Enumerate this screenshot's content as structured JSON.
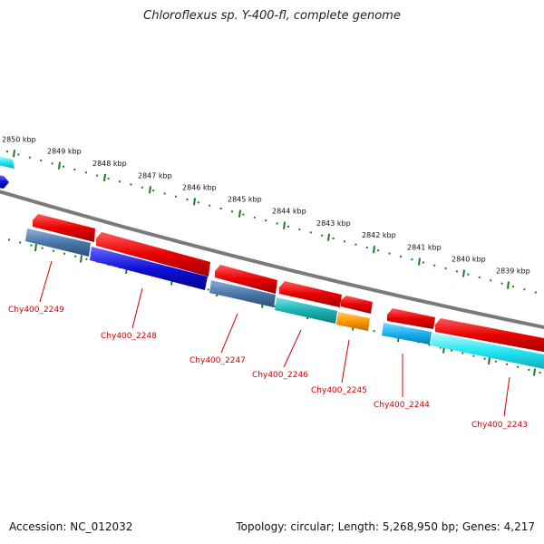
{
  "title": "Chloroflexus sp. Y-400-fl, complete genome",
  "footer": {
    "accession": "Accession: NC_012032",
    "summary": "Topology: circular; Length: 5,268,950 bp; Genes: 4,217"
  },
  "colors": {
    "backbone": "#7a7a7a",
    "tick": "#1f7a1f",
    "label": "#d40000",
    "forward_gene": "#e60000",
    "steelblue": "#4a76a8",
    "blue": "#1010d8",
    "teal": "#19b3b3",
    "orange": "#ff9900",
    "sky": "#1ab2f0",
    "cyan": "#22e6f2"
  },
  "ruler": [
    {
      "label": "2850 kbp"
    },
    {
      "label": "2849 kbp"
    },
    {
      "label": "2848 kbp"
    },
    {
      "label": "2847 kbp"
    },
    {
      "label": "2846 kbp"
    },
    {
      "label": "2845 kbp"
    },
    {
      "label": "2844 kbp"
    },
    {
      "label": "2843 kbp"
    },
    {
      "label": "2842 kbp"
    },
    {
      "label": "2841 kbp"
    },
    {
      "label": "2840 kbp"
    },
    {
      "label": "2839 kbp"
    }
  ],
  "gene_labels": [
    {
      "label": "Chy400_2249"
    },
    {
      "label": "Chy400_2248"
    },
    {
      "label": "Chy400_2247"
    },
    {
      "label": "Chy400_2246"
    },
    {
      "label": "Chy400_2245"
    },
    {
      "label": "Chy400_2244"
    },
    {
      "label": "Chy400_2243"
    }
  ]
}
